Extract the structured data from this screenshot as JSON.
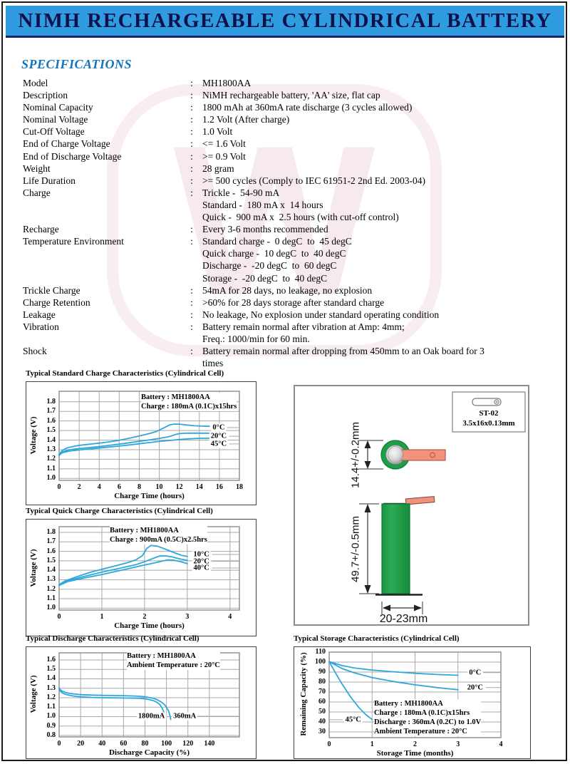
{
  "page": {
    "header_title": "NIMH RECHARGEABLE CYLINDRICAL BATTERY",
    "section_title": "SPECIFICATIONS",
    "watermark_letter": "W",
    "colors": {
      "header_bg": "#2e9cdf",
      "header_text": "#10104a",
      "accent_blue": "#1173bd",
      "curve_blue": "#2ea7dc",
      "battery_green": "#1f9e48",
      "tab_salmon": "#ef937f"
    }
  },
  "specifications": [
    {
      "label": "Model",
      "lines": [
        "MH1800AA"
      ]
    },
    {
      "label": "Description",
      "lines": [
        "NiMH rechargeable battery, 'AA' size, flat cap"
      ]
    },
    {
      "label": "Nominal Capacity",
      "lines": [
        "1800 mAh at 360mA rate discharge (3 cycles allowed)"
      ]
    },
    {
      "label": "Nominal Voltage",
      "lines": [
        "1.2 Volt (After charge)"
      ]
    },
    {
      "label": "Cut-Off Voltage",
      "lines": [
        "1.0 Volt"
      ]
    },
    {
      "label": "End of Charge Voltage",
      "lines": [
        "<= 1.6 Volt"
      ]
    },
    {
      "label": "End of Discharge Voltage",
      "lines": [
        ">= 0.9 Volt"
      ]
    },
    {
      "label": "Weight",
      "lines": [
        "28 gram"
      ]
    },
    {
      "label": "Life Duration",
      "lines": [
        ">= 500 cycles (Comply to IEC 61951-2 2nd Ed. 2003-04)"
      ]
    },
    {
      "label": "Charge",
      "lines": [
        "Trickle -  54-90 mA",
        "Standard -  180 mA x  14 hours",
        "Quick -  900 mA x  2.5 hours (with cut-off control)"
      ]
    },
    {
      "label": "Recharge",
      "lines": [
        "Every 3-6 months recommended"
      ]
    },
    {
      "label": "Temperature Environment",
      "lines": [
        "Standard charge -  0 degC  to  45 degC",
        "Quick charge -  10 degC  to  40 degC",
        "Discharge -  -20 degC  to  60 degC",
        "Storage -  -20 degC  to  40 degC"
      ]
    },
    {
      "label": "Trickle Charge",
      "lines": [
        "54mA for 28 days, no leakage, no explosion"
      ]
    },
    {
      "label": "Charge Retention",
      "lines": [
        ">60% for 28 days storage after standard charge"
      ]
    },
    {
      "label": "Leakage",
      "lines": [
        "No leakage, No explosion under standard operating condition"
      ]
    },
    {
      "label": "Vibration",
      "lines": [
        "Battery remain normal after vibration at Amp: 4mm;",
        "Freq.: 1000/min for 60 min."
      ]
    },
    {
      "label": "Shock",
      "lines": [
        "Battery remain normal after dropping from 450mm to an Oak board for 3",
        "times"
      ]
    }
  ],
  "chart_data": [
    {
      "type": "line",
      "title": "Typical Standard Charge Characteristics (Cylindrical Cell)",
      "legend_lines": [
        "Battery : MH1800AA",
        "Charge : 180mA (0.1C)x15hrs"
      ],
      "xlabel": "Charge Time (hours)",
      "ylabel": "Voltage (V)",
      "xlim": [
        0,
        18
      ],
      "ylim": [
        0.98,
        1.91
      ],
      "x_ticks": [
        0,
        2,
        4,
        6,
        8,
        10,
        12,
        14,
        16,
        18
      ],
      "y_ticks": [
        "1.8",
        "1.7",
        "1.6",
        "1.5",
        "1.4",
        "1.3",
        "1.2",
        "1.1",
        "1.0"
      ],
      "grid": true,
      "legend_position": "top-right-inside",
      "series": [
        {
          "name": "0°C",
          "points": [
            [
              0,
              1.25
            ],
            [
              0.3,
              1.29
            ],
            [
              0.7,
              1.315
            ],
            [
              1,
              1.325
            ],
            [
              2,
              1.345
            ],
            [
              3,
              1.357
            ],
            [
              4,
              1.368
            ],
            [
              5,
              1.382
            ],
            [
              6,
              1.398
            ],
            [
              7,
              1.42
            ],
            [
              8,
              1.443
            ],
            [
              9,
              1.468
            ],
            [
              9.7,
              1.49
            ],
            [
              10.3,
              1.52
            ],
            [
              11,
              1.557
            ],
            [
              11.5,
              1.568
            ],
            [
              12,
              1.567
            ],
            [
              12.7,
              1.558
            ],
            [
              13.5,
              1.55
            ],
            [
              14.2,
              1.546
            ],
            [
              15,
              1.544
            ]
          ]
        },
        {
          "name": "20°C",
          "points": [
            [
              0,
              1.245
            ],
            [
              0.3,
              1.275
            ],
            [
              1,
              1.3
            ],
            [
              2,
              1.312
            ],
            [
              3,
              1.322
            ],
            [
              4,
              1.332
            ],
            [
              5,
              1.345
            ],
            [
              6,
              1.358
            ],
            [
              7,
              1.372
            ],
            [
              8,
              1.388
            ],
            [
              9,
              1.402
            ],
            [
              10,
              1.418
            ],
            [
              11,
              1.437
            ],
            [
              11.6,
              1.458
            ],
            [
              12,
              1.468
            ],
            [
              12.5,
              1.472
            ],
            [
              13.5,
              1.473
            ],
            [
              15,
              1.472
            ]
          ]
        },
        {
          "name": "45°C",
          "points": [
            [
              0,
              1.24
            ],
            [
              0.3,
              1.268
            ],
            [
              1,
              1.285
            ],
            [
              2,
              1.297
            ],
            [
              3,
              1.307
            ],
            [
              4,
              1.317
            ],
            [
              5,
              1.328
            ],
            [
              6,
              1.338
            ],
            [
              7,
              1.35
            ],
            [
              8,
              1.362
            ],
            [
              9,
              1.374
            ],
            [
              10,
              1.386
            ],
            [
              11,
              1.396
            ],
            [
              12,
              1.406
            ],
            [
              13,
              1.414
            ],
            [
              14,
              1.419
            ],
            [
              15,
              1.42
            ]
          ]
        }
      ],
      "curve_labels": [
        {
          "text": "0°C",
          "x": 15.93,
          "y": 1.531,
          "leader": "right"
        },
        {
          "text": "20°C",
          "x": 15.93,
          "y": 1.44,
          "leader": "right"
        },
        {
          "text": "45°C",
          "x": 15.93,
          "y": 1.36,
          "leader": "right"
        }
      ]
    },
    {
      "type": "line",
      "title": "Typical Quick Charge Characteristics (Cylindrical Cell)",
      "legend_lines": [
        "Battery : MH1800AA",
        "Charge : 900mA (0.5C)x2.5hrs"
      ],
      "xlabel": "Charge Time (hours)",
      "ylabel": "Voltage (V)",
      "xlim": [
        0,
        4.22
      ],
      "ylim": [
        0.98,
        1.86
      ],
      "x_ticks": [
        0,
        1,
        2,
        3,
        4
      ],
      "y_ticks": [
        "1.8",
        "1.7",
        "1.6",
        "1.5",
        "1.4",
        "1.3",
        "1.2",
        "1.1",
        "1.0"
      ],
      "grid": true,
      "legend_position": "top-right-inside",
      "series": [
        {
          "name": "10°C",
          "points": [
            [
              0,
              1.25
            ],
            [
              0.15,
              1.29
            ],
            [
              0.4,
              1.33
            ],
            [
              0.7,
              1.375
            ],
            [
              1,
              1.41
            ],
            [
              1.3,
              1.445
            ],
            [
              1.6,
              1.48
            ],
            [
              1.8,
              1.51
            ],
            [
              1.95,
              1.555
            ],
            [
              2.05,
              1.63
            ],
            [
              2.15,
              1.662
            ],
            [
              2.3,
              1.655
            ],
            [
              2.5,
              1.62
            ],
            [
              2.7,
              1.585
            ],
            [
              2.85,
              1.56
            ],
            [
              3,
              1.545
            ]
          ]
        },
        {
          "name": "20°C",
          "points": [
            [
              0,
              1.245
            ],
            [
              0.2,
              1.29
            ],
            [
              0.5,
              1.325
            ],
            [
              1,
              1.38
            ],
            [
              1.5,
              1.43
            ],
            [
              1.8,
              1.46
            ],
            [
              2,
              1.49
            ],
            [
              2.2,
              1.525
            ],
            [
              2.35,
              1.55
            ],
            [
              2.5,
              1.552
            ],
            [
              2.65,
              1.54
            ],
            [
              2.8,
              1.522
            ],
            [
              3,
              1.505
            ]
          ]
        },
        {
          "name": "40°C",
          "points": [
            [
              0,
              1.24
            ],
            [
              0.2,
              1.28
            ],
            [
              0.5,
              1.31
            ],
            [
              1,
              1.355
            ],
            [
              1.5,
              1.405
            ],
            [
              2,
              1.455
            ],
            [
              2.2,
              1.475
            ],
            [
              2.4,
              1.495
            ],
            [
              2.55,
              1.51
            ],
            [
              2.7,
              1.505
            ],
            [
              2.85,
              1.49
            ],
            [
              3,
              1.47
            ]
          ]
        }
      ],
      "curve_labels": [
        {
          "text": "10°C",
          "x": 3.33,
          "y": 1.567,
          "leader": "right"
        },
        {
          "text": "20°C",
          "x": 3.33,
          "y": 1.495,
          "leader": "right"
        },
        {
          "text": "40°C",
          "x": 3.33,
          "y": 1.424,
          "leader": "right"
        }
      ]
    },
    {
      "type": "line",
      "title": "Typical Discharge Characteristics (Cylindrical Cell)",
      "legend_lines": [
        "Battery : MH1800AA",
        "Ambient Temperature : 20°C"
      ],
      "xlabel": "Discharge Capacity (%)",
      "ylabel": "Voltage (V)",
      "xlim": [
        0,
        168
      ],
      "ylim": [
        0.785,
        1.675
      ],
      "x_ticks": [
        0,
        20,
        40,
        60,
        80,
        100,
        120,
        140
      ],
      "y_ticks": [
        "1.6",
        "1.5",
        "1.4",
        "1.3",
        "1.2",
        "1.1",
        "1.0",
        "0.9",
        "0.8"
      ],
      "grid": true,
      "legend_position": "top-right-inside",
      "series": [
        {
          "name": "1800mA",
          "points": [
            [
              0,
              1.295
            ],
            [
              1,
              1.27
            ],
            [
              3,
              1.25
            ],
            [
              6,
              1.235
            ],
            [
              10,
              1.225
            ],
            [
              15,
              1.215
            ],
            [
              20,
              1.21
            ],
            [
              30,
              1.203
            ],
            [
              40,
              1.2
            ],
            [
              50,
              1.198
            ],
            [
              60,
              1.197
            ],
            [
              70,
              1.195
            ],
            [
              75,
              1.193
            ],
            [
              80,
              1.188
            ],
            [
              84,
              1.18
            ],
            [
              87,
              1.172
            ],
            [
              90,
              1.158
            ],
            [
              92,
              1.145
            ],
            [
              94,
              1.125
            ],
            [
              96,
              1.09
            ],
            [
              97.5,
              1.05
            ],
            [
              98.5,
              1.0
            ],
            [
              99,
              0.97
            ]
          ]
        },
        {
          "name": "360mA",
          "points": [
            [
              0,
              1.305
            ],
            [
              1,
              1.285
            ],
            [
              3,
              1.268
            ],
            [
              6,
              1.255
            ],
            [
              10,
              1.245
            ],
            [
              15,
              1.238
            ],
            [
              20,
              1.232
            ],
            [
              30,
              1.228
            ],
            [
              40,
              1.225
            ],
            [
              50,
              1.223
            ],
            [
              60,
              1.222
            ],
            [
              70,
              1.218
            ],
            [
              75,
              1.215
            ],
            [
              80,
              1.21
            ],
            [
              85,
              1.2
            ],
            [
              88,
              1.193
            ],
            [
              91,
              1.18
            ],
            [
              94,
              1.162
            ],
            [
              96,
              1.148
            ],
            [
              98,
              1.128
            ],
            [
              100,
              1.1
            ],
            [
              102,
              1.06
            ],
            [
              103.5,
              1.0
            ],
            [
              104,
              0.97
            ]
          ]
        }
      ],
      "curve_labels": [
        {
          "text": "1800mA",
          "x": 86,
          "y": 1.004,
          "leader": "none"
        },
        {
          "text": "360mA",
          "x": 117,
          "y": 1.004,
          "leader": "right"
        }
      ]
    },
    {
      "type": "line",
      "title": "Typical Storage Characteristics (Cylindrical Cell)",
      "legend_lines": [
        "Battery : MH1800AA",
        "Charge : 180mA (0.1C)x15hrs",
        "Discharge : 360mA (0.2C) to 1.0V",
        "Ambient Temperature : 20°C"
      ],
      "xlabel": "Storage Time (months)",
      "ylabel": "Remaining Capacity (%)",
      "xlim": [
        0,
        4
      ],
      "ylim": [
        24.3,
        110
      ],
      "x_ticks": [
        0,
        1,
        2,
        3,
        4
      ],
      "y_ticks": [
        "110",
        "100",
        "90",
        "80",
        "70",
        "60",
        "50",
        "40",
        "30"
      ],
      "grid": true,
      "legend_position": "bottom-center-inside",
      "series": [
        {
          "name": "0°C",
          "points": [
            [
              0,
              100.5
            ],
            [
              0.3,
              96.5
            ],
            [
              0.6,
              94
            ],
            [
              1,
              92
            ],
            [
              1.5,
              90.3
            ],
            [
              2,
              88.8
            ],
            [
              2.5,
              87.6
            ],
            [
              3,
              86.8
            ]
          ]
        },
        {
          "name": "20°C",
          "points": [
            [
              0,
              100.5
            ],
            [
              0.3,
              93.5
            ],
            [
              0.6,
              89
            ],
            [
              1,
              84.5
            ],
            [
              1.5,
              80.5
            ],
            [
              2,
              77.2
            ],
            [
              2.5,
              74.5
            ],
            [
              3,
              72.3
            ]
          ]
        },
        {
          "name": "45°C",
          "points": [
            [
              0,
              100.5
            ],
            [
              0.15,
              89
            ],
            [
              0.3,
              78
            ],
            [
              0.5,
              65
            ],
            [
              0.7,
              54
            ],
            [
              0.85,
              47.5
            ],
            [
              1,
              42.5
            ]
          ]
        }
      ],
      "curve_labels": [
        {
          "text": "0°C",
          "x": 3.4,
          "y": 89.5,
          "leader": "right"
        },
        {
          "text": "20°C",
          "x": 3.4,
          "y": 74.5,
          "leader": "right"
        },
        {
          "text": "45°C",
          "x": 0.56,
          "y": 42.2,
          "leader": "left"
        }
      ]
    }
  ],
  "diagram": {
    "tab_spec": {
      "model": "ST-02",
      "size": "3.5x16x0.13mm"
    },
    "diameter_label": "14.4+/-0.2mm",
    "height_label": "49.7+/-0.5mm",
    "width_label": "20-23mm"
  }
}
